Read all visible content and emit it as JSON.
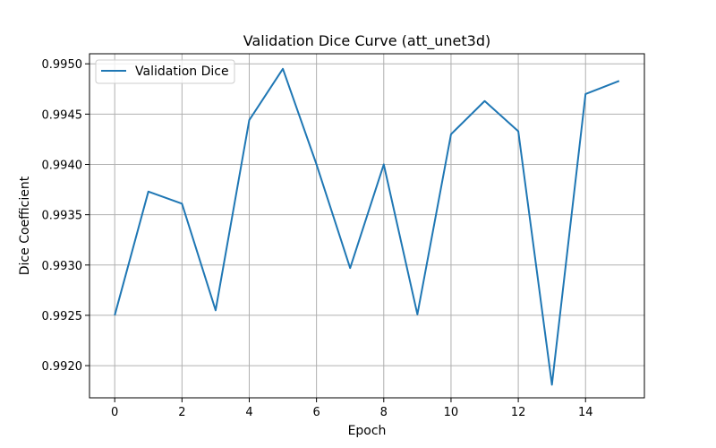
{
  "chart_data": {
    "type": "line",
    "title": "Validation Dice Curve (att_unet3d)",
    "xlabel": "Epoch",
    "ylabel": "Dice Coefficient",
    "xlim": [
      -0.75,
      15.75
    ],
    "ylim": [
      0.99168,
      0.9951
    ],
    "xticks": [
      0,
      2,
      4,
      6,
      8,
      10,
      12,
      14
    ],
    "xtick_labels": [
      "0",
      "2",
      "4",
      "6",
      "8",
      "10",
      "12",
      "14"
    ],
    "yticks": [
      0.992,
      0.9925,
      0.993,
      0.9935,
      0.994,
      0.9945,
      0.995
    ],
    "ytick_labels": [
      "0.9920",
      "0.9925",
      "0.9930",
      "0.9935",
      "0.9940",
      "0.9945",
      "0.9950"
    ],
    "grid": true,
    "legend_position": "upper-left",
    "series": [
      {
        "name": "Validation Dice",
        "color": "#1f77b4",
        "x": [
          0,
          1,
          2,
          3,
          4,
          5,
          6,
          7,
          8,
          9,
          10,
          11,
          12,
          13,
          14,
          15
        ],
        "y": [
          0.9925,
          0.99373,
          0.99361,
          0.99255,
          0.99444,
          0.99495,
          0.994,
          0.99297,
          0.994,
          0.99251,
          0.9943,
          0.99463,
          0.99433,
          0.99181,
          0.9947,
          0.99483
        ]
      }
    ]
  }
}
